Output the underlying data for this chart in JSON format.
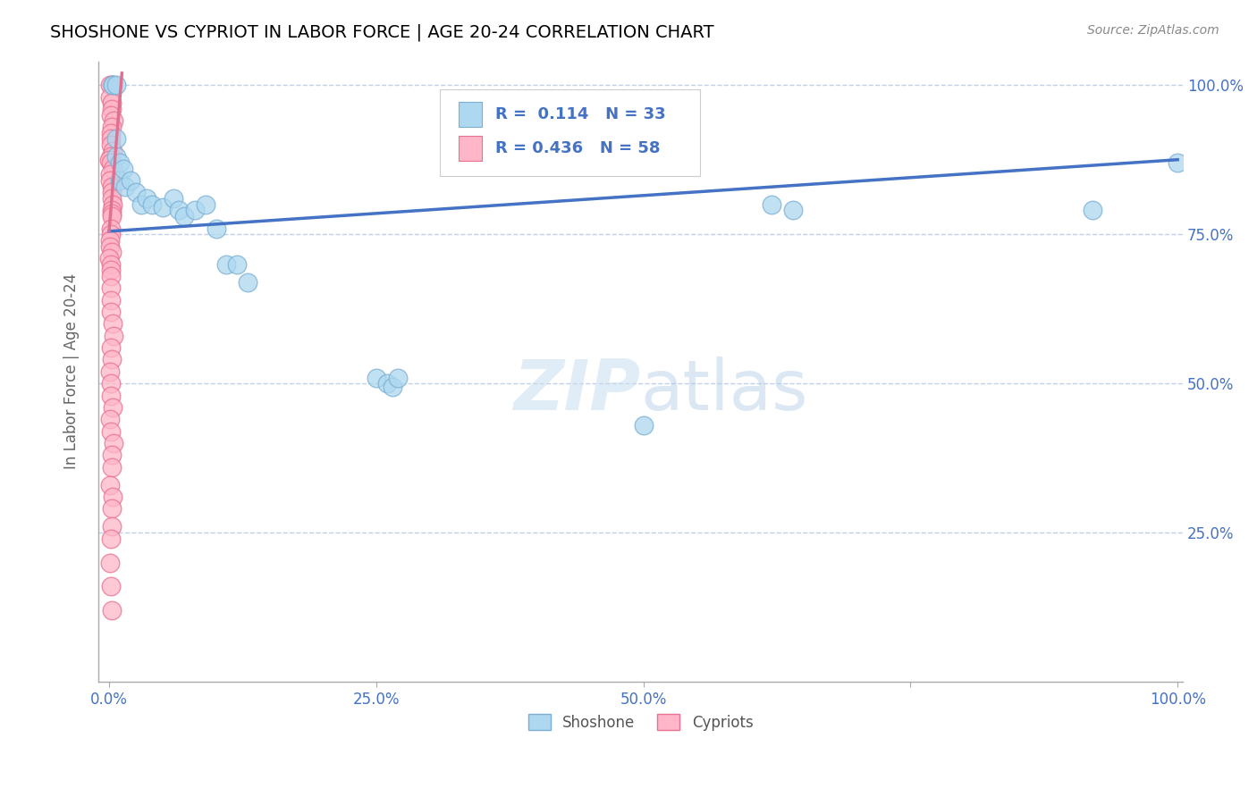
{
  "title": "SHOSHONE VS CYPRIOT IN LABOR FORCE | AGE 20-24 CORRELATION CHART",
  "source_text": "Source: ZipAtlas.com",
  "ylabel": "In Labor Force | Age 20-24",
  "watermark_zip": "ZIP",
  "watermark_atlas": "atlas",
  "shoshone_R": 0.114,
  "shoshone_N": 33,
  "cypriot_R": 0.436,
  "cypriot_N": 58,
  "shoshone_color": "#ADD8F0",
  "shoshone_edge": "#7BAFD4",
  "cypriot_color": "#FFB6C8",
  "cypriot_edge": "#E87090",
  "trend_blue": "#4472C4",
  "trend_pink": "#E07090",
  "background": "#FFFFFF",
  "grid_color": "#B8CCE4",
  "shoshone_x": [
    0.003,
    0.003,
    0.007,
    0.007,
    0.007,
    0.01,
    0.01,
    0.013,
    0.015,
    0.02,
    0.025,
    0.03,
    0.035,
    0.04,
    0.05,
    0.06,
    0.065,
    0.07,
    0.08,
    0.09,
    0.1,
    0.11,
    0.12,
    0.13,
    0.25,
    0.26,
    0.265,
    0.27,
    0.5,
    0.62,
    0.64,
    0.92,
    1.0
  ],
  "shoshone_y": [
    1.0,
    1.0,
    1.0,
    0.88,
    0.91,
    0.87,
    0.84,
    0.86,
    0.83,
    0.84,
    0.82,
    0.8,
    0.81,
    0.8,
    0.795,
    0.81,
    0.79,
    0.78,
    0.79,
    0.8,
    0.76,
    0.7,
    0.7,
    0.67,
    0.51,
    0.5,
    0.495,
    0.51,
    0.43,
    0.8,
    0.79,
    0.79,
    0.87
  ],
  "cypriot_x": [
    0.002,
    0.002,
    0.002,
    0.002,
    0.002,
    0.002,
    0.002,
    0.002,
    0.002,
    0.002,
    0.002,
    0.002,
    0.002,
    0.002,
    0.002,
    0.002,
    0.002,
    0.002,
    0.002,
    0.002,
    0.002,
    0.002,
    0.002,
    0.002,
    0.002,
    0.002,
    0.002,
    0.002,
    0.002,
    0.002,
    0.002,
    0.002,
    0.002,
    0.002,
    0.002,
    0.002,
    0.002,
    0.002,
    0.002,
    0.002,
    0.002,
    0.002,
    0.002,
    0.002,
    0.002,
    0.002,
    0.002,
    0.002,
    0.002,
    0.002,
    0.002,
    0.002,
    0.002,
    0.002,
    0.002,
    0.002,
    0.002,
    0.002
  ],
  "cypriot_y": [
    1.0,
    1.0,
    0.98,
    0.97,
    0.96,
    0.95,
    0.94,
    0.93,
    0.92,
    0.91,
    0.9,
    0.89,
    0.88,
    0.875,
    0.87,
    0.86,
    0.85,
    0.84,
    0.83,
    0.82,
    0.81,
    0.8,
    0.79,
    0.785,
    0.78,
    0.76,
    0.75,
    0.74,
    0.73,
    0.72,
    0.71,
    0.7,
    0.69,
    0.68,
    0.66,
    0.64,
    0.62,
    0.6,
    0.58,
    0.56,
    0.54,
    0.52,
    0.5,
    0.48,
    0.46,
    0.44,
    0.42,
    0.4,
    0.38,
    0.36,
    0.33,
    0.31,
    0.29,
    0.26,
    0.24,
    0.2,
    0.16,
    0.12
  ],
  "xlim": [
    -0.01,
    1.005
  ],
  "ylim": [
    0.0,
    1.04
  ],
  "xticks": [
    0.0,
    0.25,
    0.5,
    0.75,
    1.0
  ],
  "xtick_labels": [
    "0.0%",
    "25.0%",
    "50.0%",
    "",
    "100.0%"
  ],
  "yticks": [
    0.0,
    0.25,
    0.5,
    0.75,
    1.0
  ],
  "ytick_labels": [
    "",
    "25.0%",
    "50.0%",
    "75.0%",
    "100.0%"
  ],
  "tick_color": "#4472C4",
  "title_fontsize": 14,
  "axis_fontsize": 12
}
